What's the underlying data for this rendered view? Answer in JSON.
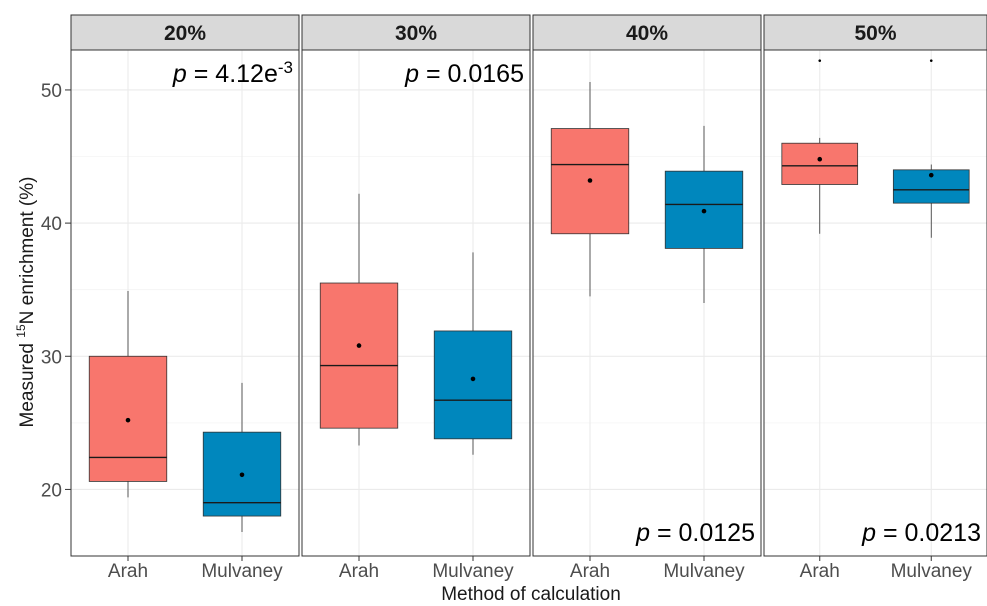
{
  "chart_data": {
    "type": "boxplot",
    "xlabel": "Method of calculation",
    "ylabel": {
      "prefix": "Measured ",
      "superscript": "15",
      "suffix": "N enrichment (%)"
    },
    "ylim": [
      15,
      53
    ],
    "yticks": [
      20,
      30,
      40,
      50
    ],
    "grid": true,
    "categories": [
      "Arah",
      "Mulvaney"
    ],
    "colors": {
      "Arah": "#F8766D",
      "Mulvaney": "#0087BD"
    },
    "panels": [
      {
        "label": "20%",
        "p_text": {
          "italic": "p",
          "rest": " = 4.12e",
          "sup": "-3"
        },
        "p_position": "top-right",
        "boxes": [
          {
            "category": "Arah",
            "lower_whisker": 19.4,
            "q1": 20.6,
            "median": 22.4,
            "q3": 30.0,
            "upper_whisker": 34.9,
            "mean": 25.2,
            "outliers": []
          },
          {
            "category": "Mulvaney",
            "lower_whisker": 16.8,
            "q1": 18.0,
            "median": 19.0,
            "q3": 24.3,
            "upper_whisker": 28.0,
            "mean": 21.1,
            "outliers": []
          }
        ]
      },
      {
        "label": "30%",
        "p_text": {
          "italic": "p",
          "rest": " = 0.0165",
          "sup": ""
        },
        "p_position": "top-right",
        "boxes": [
          {
            "category": "Arah",
            "lower_whisker": 23.3,
            "q1": 24.6,
            "median": 29.3,
            "q3": 35.5,
            "upper_whisker": 42.2,
            "mean": 30.8,
            "outliers": []
          },
          {
            "category": "Mulvaney",
            "lower_whisker": 22.6,
            "q1": 23.8,
            "median": 26.7,
            "q3": 31.9,
            "upper_whisker": 37.8,
            "mean": 28.3,
            "outliers": []
          }
        ]
      },
      {
        "label": "40%",
        "p_text": {
          "italic": "p",
          "rest": " = 0.0125",
          "sup": ""
        },
        "p_position": "bottom-right",
        "boxes": [
          {
            "category": "Arah",
            "lower_whisker": 34.5,
            "q1": 39.2,
            "median": 44.4,
            "q3": 47.1,
            "upper_whisker": 50.6,
            "mean": 43.2,
            "outliers": []
          },
          {
            "category": "Mulvaney",
            "lower_whisker": 34.0,
            "q1": 38.1,
            "median": 41.4,
            "q3": 43.9,
            "upper_whisker": 47.3,
            "mean": 40.9,
            "outliers": []
          }
        ]
      },
      {
        "label": "50%",
        "p_text": {
          "italic": "p",
          "rest": " = 0.0213",
          "sup": ""
        },
        "p_position": "bottom-right",
        "boxes": [
          {
            "category": "Arah",
            "lower_whisker": 39.2,
            "q1": 42.9,
            "median": 44.3,
            "q3": 46.0,
            "upper_whisker": 46.4,
            "mean": 44.8,
            "outliers": [
              52.2
            ]
          },
          {
            "category": "Mulvaney",
            "lower_whisker": 38.9,
            "q1": 41.5,
            "median": 42.5,
            "q3": 44.0,
            "upper_whisker": 44.4,
            "mean": 43.6,
            "outliers": [
              52.2
            ]
          }
        ]
      }
    ]
  }
}
